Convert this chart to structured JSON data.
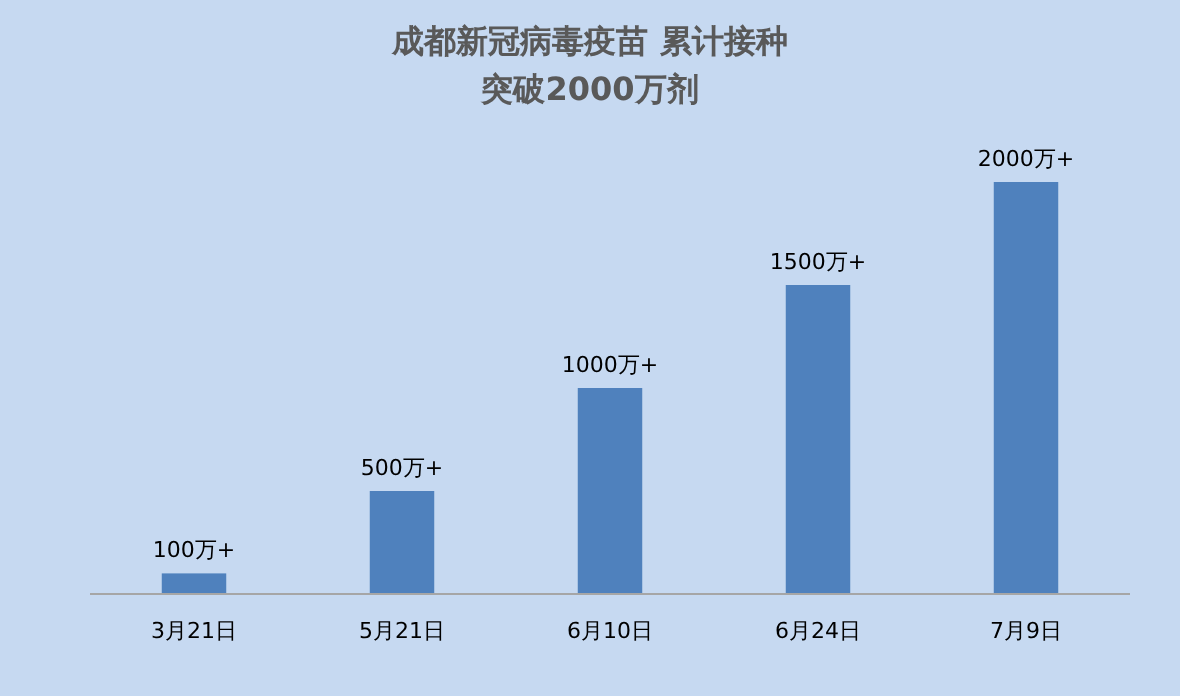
{
  "chart_data": {
    "type": "bar",
    "title": "成都新冠病毒疫苗 累计接种",
    "subtitle": "突破2000万剂",
    "categories": [
      "3月21日",
      "5月21日",
      "6月10日",
      "6月24日",
      "7月9日"
    ],
    "values": [
      100,
      500,
      1000,
      1500,
      2000
    ],
    "value_labels": [
      "100万+",
      "500万+",
      "1000万+",
      "1500万+",
      "2000万+"
    ],
    "color": "#4f81bd"
  }
}
